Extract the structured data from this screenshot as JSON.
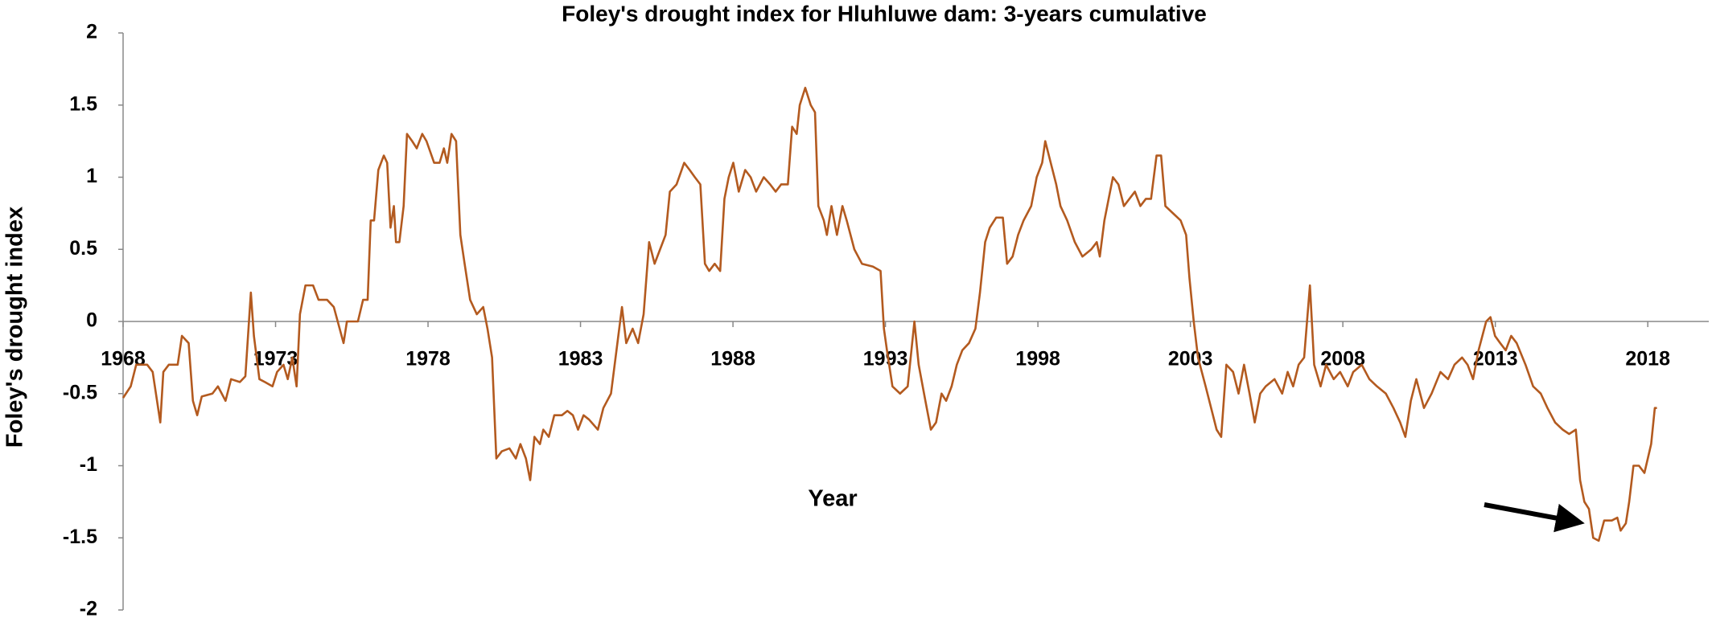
{
  "chart_data": {
    "type": "line",
    "title": "Foley's drought index for Hluhluwe dam: 3-years cumulative",
    "x_label": "Year",
    "y_label": "Foley's drought index",
    "xlim": [
      1968,
      2020
    ],
    "xticks": [
      1968,
      1973,
      1978,
      1983,
      1988,
      1993,
      1998,
      2003,
      2008,
      2013,
      2018
    ],
    "ylim": [
      -2,
      2
    ],
    "yticks": [
      2,
      1.5,
      1,
      0.5,
      0,
      -0.5,
      -1,
      -1.5,
      -2
    ],
    "grid": false,
    "series": [
      {
        "name": "Foley's drought index",
        "color": "#b35a1f",
        "x": [
          1968.0,
          1968.25,
          1968.43,
          1968.79,
          1968.97,
          1969.22,
          1969.32,
          1969.5,
          1969.79,
          1969.93,
          1970.15,
          1970.29,
          1970.43,
          1970.58,
          1970.93,
          1971.11,
          1971.36,
          1971.54,
          1971.83,
          1972.01,
          1972.19,
          1972.29,
          1972.47,
          1972.65,
          1972.9,
          1973.05,
          1973.26,
          1973.4,
          1973.55,
          1973.69,
          1973.8,
          1973.98,
          1974.23,
          1974.41,
          1974.69,
          1974.91,
          1975.23,
          1975.34,
          1975.7,
          1975.87,
          1976.02,
          1976.12,
          1976.23,
          1976.37,
          1976.55,
          1976.66,
          1976.77,
          1976.88,
          1976.95,
          1977.06,
          1977.2,
          1977.31,
          1977.48,
          1977.63,
          1977.81,
          1977.95,
          1978.2,
          1978.38,
          1978.52,
          1978.63,
          1978.77,
          1978.92,
          1979.06,
          1979.2,
          1979.38,
          1979.6,
          1979.81,
          1979.95,
          1980.1,
          1980.24,
          1980.42,
          1980.67,
          1980.88,
          1981.03,
          1981.21,
          1981.35,
          1981.49,
          1981.67,
          1981.78,
          1981.96,
          1982.14,
          1982.39,
          1982.57,
          1982.75,
          1982.92,
          1983.1,
          1983.28,
          1983.57,
          1983.75,
          1984.0,
          1984.18,
          1984.36,
          1984.5,
          1984.71,
          1984.89,
          1985.07,
          1985.25,
          1985.43,
          1985.61,
          1985.79,
          1985.93,
          1986.15,
          1986.4,
          1986.58,
          1986.75,
          1986.93,
          1987.08,
          1987.22,
          1987.4,
          1987.58,
          1987.72,
          1987.86,
          1988.01,
          1988.19,
          1988.4,
          1988.58,
          1988.76,
          1989.01,
          1989.22,
          1989.4,
          1989.58,
          1989.8,
          1989.94,
          1990.09,
          1990.19,
          1990.37,
          1990.55,
          1990.69,
          1990.8,
          1990.98,
          1991.08,
          1991.23,
          1991.41,
          1991.59,
          1991.73,
          1991.98,
          1992.23,
          1992.59,
          1992.84,
          1992.95,
          1993.05,
          1993.23,
          1993.48,
          1993.73,
          1993.95,
          1994.09,
          1994.31,
          1994.49,
          1994.66,
          1994.84,
          1994.99,
          1995.17,
          1995.34,
          1995.52,
          1995.74,
          1995.95,
          1996.1,
          1996.27,
          1996.42,
          1996.63,
          1996.85,
          1996.99,
          1997.17,
          1997.35,
          1997.53,
          1997.78,
          1997.96,
          1998.14,
          1998.24,
          1998.42,
          1998.6,
          1998.74,
          1998.96,
          1999.21,
          1999.46,
          1999.75,
          1999.93,
          2000.03,
          2000.18,
          2000.32,
          2000.46,
          2000.64,
          2000.82,
          2001.0,
          2001.18,
          2001.36,
          2001.54,
          2001.71,
          2001.89,
          2002.04,
          2002.18,
          2002.43,
          2002.68,
          2002.86,
          2002.97,
          2003.11,
          2003.25,
          2003.5,
          2003.68,
          2003.86,
          2004.01,
          2004.18,
          2004.4,
          2004.58,
          2004.76,
          2004.94,
          2005.11,
          2005.29,
          2005.47,
          2005.76,
          2006.01,
          2006.19,
          2006.37,
          2006.55,
          2006.73,
          2006.92,
          2007.06,
          2007.27,
          2007.45,
          2007.7,
          2007.91,
          2008.16,
          2008.34,
          2008.62,
          2008.87,
          2009.12,
          2009.41,
          2009.66,
          2009.88,
          2010.05,
          2010.23,
          2010.41,
          2010.66,
          2010.91,
          2011.2,
          2011.45,
          2011.66,
          2011.91,
          2012.09,
          2012.27,
          2012.45,
          2012.7,
          2012.84,
          2012.99,
          2013.16,
          2013.34,
          2013.52,
          2013.7,
          2013.99,
          2014.24,
          2014.49,
          2014.71,
          2014.96,
          2015.21,
          2015.42,
          2015.64,
          2015.78,
          2015.92,
          2016.07,
          2016.21,
          2016.39,
          2016.57,
          2016.82,
          2017.0,
          2017.11,
          2017.28,
          2017.39,
          2017.53,
          2017.71,
          2017.89,
          2018.0,
          2018.11,
          2018.23,
          2018.3
        ],
        "values": [
          -0.53,
          -0.45,
          -0.3,
          -0.3,
          -0.35,
          -0.7,
          -0.35,
          -0.3,
          -0.3,
          -0.1,
          -0.15,
          -0.55,
          -0.65,
          -0.52,
          -0.5,
          -0.45,
          -0.55,
          -0.4,
          -0.42,
          -0.38,
          0.2,
          -0.1,
          -0.4,
          -0.42,
          -0.45,
          -0.35,
          -0.3,
          -0.4,
          -0.25,
          -0.45,
          0.05,
          0.25,
          0.25,
          0.15,
          0.15,
          0.1,
          -0.15,
          0.0,
          0.0,
          0.15,
          0.15,
          0.7,
          0.7,
          1.05,
          1.15,
          1.1,
          0.65,
          0.8,
          0.55,
          0.55,
          0.8,
          1.3,
          1.25,
          1.2,
          1.3,
          1.25,
          1.1,
          1.1,
          1.2,
          1.1,
          1.3,
          1.25,
          0.6,
          0.4,
          0.15,
          0.05,
          0.1,
          -0.05,
          -0.25,
          -0.95,
          -0.9,
          -0.88,
          -0.95,
          -0.85,
          -0.95,
          -1.1,
          -0.8,
          -0.85,
          -0.75,
          -0.8,
          -0.65,
          -0.65,
          -0.62,
          -0.65,
          -0.75,
          -0.65,
          -0.68,
          -0.75,
          -0.6,
          -0.5,
          -0.2,
          0.1,
          -0.15,
          -0.05,
          -0.15,
          0.05,
          0.55,
          0.4,
          0.5,
          0.6,
          0.9,
          0.95,
          1.1,
          1.05,
          1.0,
          0.95,
          0.4,
          0.35,
          0.4,
          0.35,
          0.85,
          1.0,
          1.1,
          0.9,
          1.05,
          1.0,
          0.9,
          1.0,
          0.95,
          0.9,
          0.95,
          0.95,
          1.35,
          1.3,
          1.5,
          1.62,
          1.5,
          1.45,
          0.8,
          0.7,
          0.6,
          0.8,
          0.6,
          0.8,
          0.7,
          0.5,
          0.4,
          0.38,
          0.35,
          -0.05,
          -0.2,
          -0.45,
          -0.5,
          -0.45,
          0.0,
          -0.3,
          -0.55,
          -0.75,
          -0.7,
          -0.5,
          -0.55,
          -0.45,
          -0.3,
          -0.2,
          -0.15,
          -0.05,
          0.2,
          0.55,
          0.65,
          0.72,
          0.72,
          0.4,
          0.45,
          0.6,
          0.7,
          0.8,
          1.0,
          1.1,
          1.25,
          1.1,
          0.95,
          0.8,
          0.7,
          0.55,
          0.45,
          0.5,
          0.55,
          0.45,
          0.7,
          0.85,
          1.0,
          0.95,
          0.8,
          0.85,
          0.9,
          0.8,
          0.85,
          0.85,
          1.15,
          1.15,
          0.8,
          0.75,
          0.7,
          0.6,
          0.3,
          0.0,
          -0.25,
          -0.45,
          -0.6,
          -0.75,
          -0.8,
          -0.3,
          -0.35,
          -0.5,
          -0.3,
          -0.5,
          -0.7,
          -0.5,
          -0.45,
          -0.4,
          -0.5,
          -0.35,
          -0.45,
          -0.3,
          -0.25,
          0.25,
          -0.3,
          -0.45,
          -0.3,
          -0.4,
          -0.35,
          -0.45,
          -0.35,
          -0.3,
          -0.4,
          -0.45,
          -0.5,
          -0.6,
          -0.7,
          -0.8,
          -0.55,
          -0.4,
          -0.6,
          -0.5,
          -0.35,
          -0.4,
          -0.3,
          -0.25,
          -0.3,
          -0.4,
          -0.2,
          0.0,
          0.03,
          -0.1,
          -0.15,
          -0.2,
          -0.1,
          -0.15,
          -0.3,
          -0.45,
          -0.5,
          -0.6,
          -0.7,
          -0.75,
          -0.78,
          -0.75,
          -1.1,
          -1.25,
          -1.3,
          -1.5,
          -1.52,
          -1.38,
          -1.38,
          -1.36,
          -1.45,
          -1.4,
          -1.25,
          -1.0,
          -1.0,
          -1.05,
          -0.95,
          -0.85,
          -0.6,
          -0.6
        ]
      }
    ]
  }
}
